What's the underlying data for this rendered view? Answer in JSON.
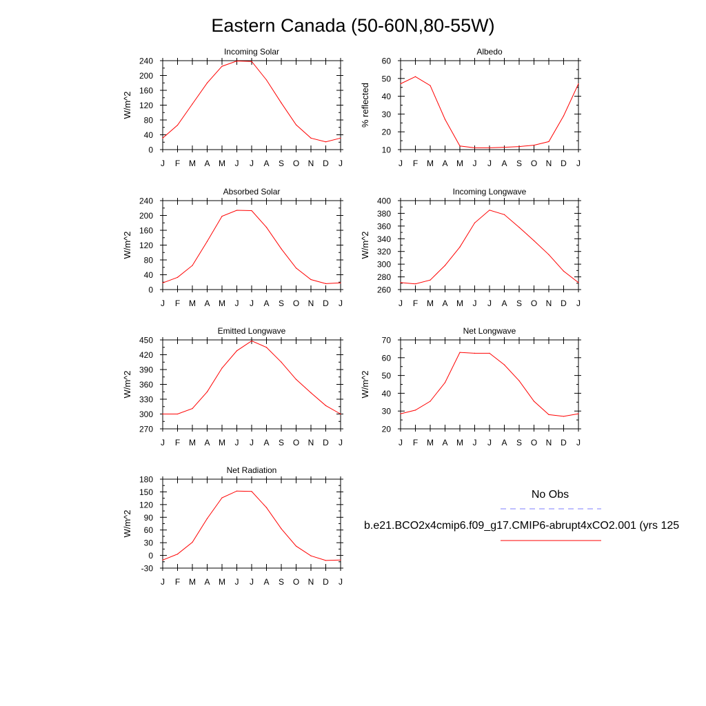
{
  "page_title": "Eastern Canada (50-60N,80-55W)",
  "months": [
    "J",
    "F",
    "M",
    "A",
    "M",
    "J",
    "J",
    "A",
    "S",
    "O",
    "N",
    "D",
    "J"
  ],
  "colors": {
    "model": "#ff0000",
    "obs": "#7f7fff"
  },
  "legend": {
    "obs_label": "No Obs",
    "model_label": "b.e21.BCO2x4cmip6.f09_g17.CMIP6-abrupt4xCO2.001 (yrs 125"
  },
  "chart_data": [
    {
      "type": "line",
      "title": "Incoming Solar",
      "ylabel": "W/m^2",
      "ylim": [
        0,
        240
      ],
      "yticks": [
        0,
        40,
        80,
        120,
        160,
        200,
        240
      ],
      "x": [
        "J",
        "F",
        "M",
        "A",
        "M",
        "J",
        "J",
        "A",
        "S",
        "O",
        "N",
        "D",
        "J"
      ],
      "series": [
        {
          "values": [
            31,
            66,
            123,
            180,
            225,
            239,
            238,
            188,
            126,
            67,
            31,
            21,
            31
          ]
        }
      ]
    },
    {
      "type": "line",
      "title": "Albedo",
      "ylabel": "% reflected",
      "ylim": [
        10,
        60
      ],
      "yticks": [
        10,
        20,
        30,
        40,
        50,
        60
      ],
      "x": [
        "J",
        "F",
        "M",
        "A",
        "M",
        "J",
        "J",
        "A",
        "S",
        "O",
        "N",
        "D",
        "J"
      ],
      "series": [
        {
          "values": [
            47,
            51,
            46,
            27,
            12,
            11,
            11,
            11.3,
            11.7,
            12.5,
            14.5,
            29,
            47
          ]
        }
      ]
    },
    {
      "type": "line",
      "title": "Absorbed Solar",
      "ylabel": "W/m^2",
      "ylim": [
        0,
        240
      ],
      "yticks": [
        0,
        40,
        80,
        120,
        160,
        200,
        240
      ],
      "x": [
        "J",
        "F",
        "M",
        "A",
        "M",
        "J",
        "J",
        "A",
        "S",
        "O",
        "N",
        "D",
        "J"
      ],
      "series": [
        {
          "values": [
            18,
            33,
            65,
            130,
            198,
            214,
            213,
            168,
            110,
            58,
            27,
            16,
            18
          ]
        }
      ]
    },
    {
      "type": "line",
      "title": "Incoming Longwave",
      "ylabel": "W/m^2",
      "ylim": [
        260,
        400
      ],
      "yticks": [
        260,
        280,
        300,
        320,
        340,
        360,
        380,
        400
      ],
      "x": [
        "J",
        "F",
        "M",
        "A",
        "M",
        "J",
        "J",
        "A",
        "S",
        "O",
        "N",
        "D",
        "J"
      ],
      "series": [
        {
          "values": [
            271,
            269,
            275,
            298,
            327,
            365,
            385,
            378,
            358,
            337,
            315,
            289,
            271
          ]
        }
      ]
    },
    {
      "type": "line",
      "title": "Emitted Longwave",
      "ylabel": "W/m^2",
      "ylim": [
        270,
        450
      ],
      "yticks": [
        270,
        300,
        330,
        360,
        390,
        420,
        450
      ],
      "x": [
        "J",
        "F",
        "M",
        "A",
        "M",
        "J",
        "J",
        "A",
        "S",
        "O",
        "N",
        "D",
        "J"
      ],
      "series": [
        {
          "values": [
            300,
            300,
            311,
            345,
            393,
            428,
            448,
            435,
            405,
            370,
            343,
            317,
            300
          ]
        }
      ]
    },
    {
      "type": "line",
      "title": "Net Longwave",
      "ylabel": "W/m^2",
      "ylim": [
        20,
        70
      ],
      "yticks": [
        20,
        30,
        40,
        50,
        60,
        70
      ],
      "x": [
        "J",
        "F",
        "M",
        "A",
        "M",
        "J",
        "J",
        "A",
        "S",
        "O",
        "N",
        "D",
        "J"
      ],
      "series": [
        {
          "values": [
            28.5,
            30.5,
            35.5,
            46,
            63,
            62.5,
            62.5,
            56,
            47,
            35.5,
            28,
            27,
            28.5
          ]
        }
      ]
    },
    {
      "type": "line",
      "title": "Net Radiation",
      "ylabel": "W/m^2",
      "ylim": [
        -30,
        180
      ],
      "yticks": [
        -30,
        0,
        30,
        60,
        90,
        120,
        150,
        180
      ],
      "x": [
        "J",
        "F",
        "M",
        "A",
        "M",
        "J",
        "J",
        "A",
        "S",
        "O",
        "N",
        "D",
        "J"
      ],
      "series": [
        {
          "values": [
            -11,
            3,
            31,
            87,
            136,
            152,
            151,
            113,
            63,
            22,
            -1,
            -12,
            -11
          ]
        }
      ]
    }
  ]
}
